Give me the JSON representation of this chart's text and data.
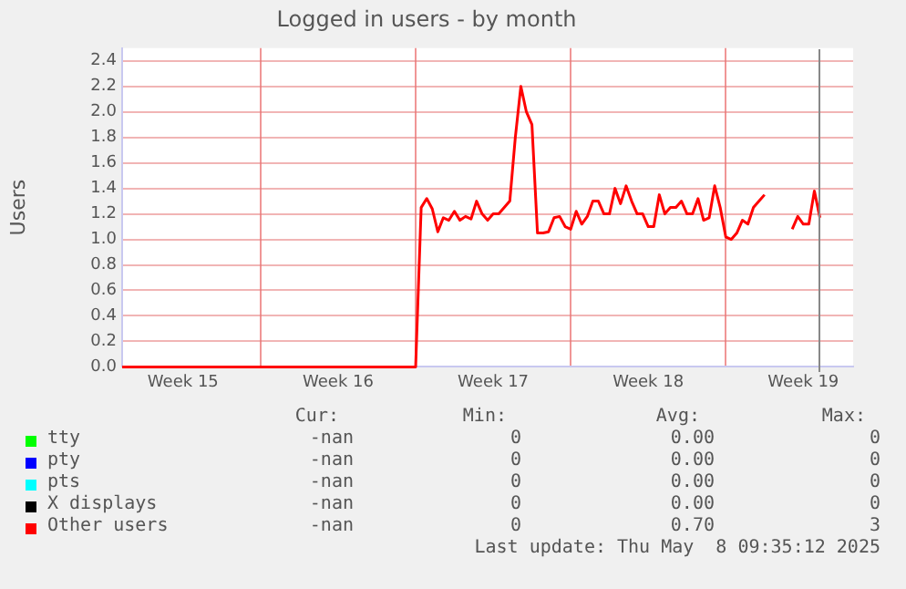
{
  "chart_data": {
    "type": "line",
    "title": "Logged in users - by month",
    "ylabel": "Users",
    "categories": [
      null,
      null,
      null,
      null,
      null,
      null,
      null,
      null,
      null,
      null,
      null,
      "Week 15",
      null,
      null,
      null,
      null,
      null,
      null,
      null,
      null,
      null,
      null,
      null,
      null,
      null,
      null,
      null,
      null,
      null,
      null,
      null,
      null,
      null,
      null,
      null,
      null,
      null,
      null,
      null,
      "Week 16",
      null,
      null,
      null,
      null,
      null,
      null,
      null,
      null,
      null,
      null,
      null,
      null,
      null,
      null,
      null,
      null,
      null,
      null,
      null,
      null,
      null,
      null,
      null,
      null,
      null,
      null,
      null,
      "Week 17",
      null,
      null,
      null,
      null,
      null,
      null,
      null,
      null,
      null,
      null,
      null,
      null,
      null,
      null,
      null,
      null,
      null,
      null,
      null,
      null,
      null,
      null,
      null,
      null,
      null,
      null,
      null,
      "Week 18",
      null,
      null,
      null,
      null,
      null,
      null,
      null,
      null,
      null,
      null,
      null,
      null,
      null,
      null,
      null,
      null,
      null,
      null,
      null,
      null,
      null,
      null,
      null,
      null,
      null,
      null,
      null,
      "Week 19",
      null,
      null,
      null,
      null,
      null,
      null,
      null,
      null,
      null
    ],
    "ylim": [
      0,
      2.5
    ],
    "yticks": [
      {
        "value": 0,
        "label": "0.0"
      },
      0.2,
      0.4,
      0.6,
      0.8,
      {
        "value": 1,
        "label": "1.0"
      },
      1.2,
      1.4,
      1.6,
      1.8,
      {
        "value": 2,
        "label": "2.0"
      },
      2.2,
      2.4
    ],
    "grid": true,
    "legend": "bottom",
    "line_style": "solid",
    "marker": "none",
    "series": [
      {
        "name": "tty",
        "color": "#00ff00",
        "values": [
          null,
          null,
          null,
          null,
          null,
          null,
          null,
          null,
          null,
          null,
          null,
          null,
          null,
          null,
          null,
          null,
          null,
          null,
          null,
          null,
          null,
          null,
          null,
          null,
          null,
          null,
          null,
          null,
          null,
          null,
          null,
          null,
          null,
          null,
          null,
          null,
          null,
          null,
          null,
          null,
          null,
          null,
          null,
          null,
          null,
          null,
          null,
          null,
          null,
          null,
          null,
          null,
          null,
          null,
          null,
          null,
          null,
          null,
          null,
          null,
          null,
          null,
          null,
          null,
          null,
          null,
          null,
          null,
          null,
          null,
          null,
          null,
          null,
          null,
          null,
          null,
          null,
          null,
          null,
          null,
          null,
          null,
          null,
          null,
          null,
          null,
          null,
          null,
          null,
          null,
          null,
          null,
          null,
          null,
          null,
          null,
          null,
          null,
          null,
          null,
          null,
          null,
          null,
          null,
          null,
          null,
          null,
          null,
          null,
          null,
          null,
          null,
          null,
          null,
          null,
          null,
          null,
          null,
          null,
          null,
          null,
          null,
          null,
          null,
          null,
          null,
          null,
          null,
          null,
          null,
          null,
          null,
          null
        ]
      },
      {
        "name": "pty",
        "color": "#0000ff",
        "values": [
          null,
          null,
          null,
          null,
          null,
          null,
          null,
          null,
          null,
          null,
          null,
          null,
          null,
          null,
          null,
          null,
          null,
          null,
          null,
          null,
          null,
          null,
          null,
          null,
          null,
          null,
          null,
          null,
          null,
          null,
          null,
          null,
          null,
          null,
          null,
          null,
          null,
          null,
          null,
          null,
          null,
          null,
          null,
          null,
          null,
          null,
          null,
          null,
          null,
          null,
          null,
          null,
          null,
          null,
          null,
          null,
          null,
          null,
          null,
          null,
          null,
          null,
          null,
          null,
          null,
          null,
          null,
          null,
          null,
          null,
          null,
          null,
          null,
          null,
          null,
          null,
          null,
          null,
          null,
          null,
          null,
          null,
          null,
          null,
          null,
          null,
          null,
          null,
          null,
          null,
          null,
          null,
          null,
          null,
          null,
          null,
          null,
          null,
          null,
          null,
          null,
          null,
          null,
          null,
          null,
          null,
          null,
          null,
          null,
          null,
          null,
          null,
          null,
          null,
          null,
          null,
          null,
          null,
          null,
          null,
          null,
          null,
          null,
          null,
          null,
          null,
          null,
          null,
          null,
          null,
          null,
          null,
          null
        ]
      },
      {
        "name": "pts",
        "color": "#00ffff",
        "values": [
          null,
          null,
          null,
          null,
          null,
          null,
          null,
          null,
          null,
          null,
          null,
          null,
          null,
          null,
          null,
          null,
          null,
          null,
          null,
          null,
          null,
          null,
          null,
          null,
          null,
          null,
          null,
          null,
          null,
          null,
          null,
          null,
          null,
          null,
          null,
          null,
          null,
          null,
          null,
          null,
          null,
          null,
          null,
          null,
          null,
          null,
          null,
          null,
          null,
          null,
          null,
          null,
          null,
          null,
          null,
          null,
          null,
          null,
          null,
          null,
          null,
          null,
          null,
          null,
          null,
          null,
          null,
          null,
          null,
          null,
          null,
          null,
          null,
          null,
          null,
          null,
          null,
          null,
          null,
          null,
          null,
          null,
          null,
          null,
          null,
          null,
          null,
          null,
          null,
          null,
          null,
          null,
          null,
          null,
          null,
          null,
          null,
          null,
          null,
          null,
          null,
          null,
          null,
          null,
          null,
          null,
          null,
          null,
          null,
          null,
          null,
          null,
          null,
          null,
          null,
          null,
          null,
          null,
          null,
          null,
          null,
          null,
          null,
          null,
          null,
          null,
          null,
          null,
          null,
          null,
          null,
          null,
          null
        ]
      },
      {
        "name": "X displays",
        "color": "#000000",
        "values": [
          null,
          null,
          null,
          null,
          null,
          null,
          null,
          null,
          null,
          null,
          null,
          null,
          null,
          null,
          null,
          null,
          null,
          null,
          null,
          null,
          null,
          null,
          null,
          null,
          null,
          null,
          null,
          null,
          null,
          null,
          null,
          null,
          null,
          null,
          null,
          null,
          null,
          null,
          null,
          null,
          null,
          null,
          null,
          null,
          null,
          null,
          null,
          null,
          null,
          null,
          null,
          null,
          null,
          null,
          null,
          null,
          null,
          null,
          null,
          null,
          null,
          null,
          null,
          null,
          null,
          null,
          null,
          null,
          null,
          null,
          null,
          null,
          null,
          null,
          null,
          null,
          null,
          null,
          null,
          null,
          null,
          null,
          null,
          null,
          null,
          null,
          null,
          null,
          null,
          null,
          null,
          null,
          null,
          null,
          null,
          null,
          null,
          null,
          null,
          null,
          null,
          null,
          null,
          null,
          null,
          null,
          null,
          null,
          null,
          null,
          null,
          null,
          null,
          null,
          null,
          null,
          null,
          null,
          null,
          null,
          null,
          null,
          null,
          null,
          null,
          null,
          null,
          null,
          null,
          null,
          null,
          null,
          null
        ]
      },
      {
        "name": "Other users",
        "color": "#ff0000",
        "values": [
          0,
          0,
          0,
          0,
          0,
          0,
          0,
          0,
          0,
          0,
          0,
          0,
          0,
          0,
          0,
          0,
          0,
          0,
          0,
          0,
          0,
          0,
          0,
          0,
          0,
          0,
          0,
          0,
          0,
          0,
          0,
          0,
          0,
          0,
          0,
          0,
          0,
          0,
          0,
          0,
          0,
          0,
          0,
          0,
          0,
          0,
          0,
          0,
          0,
          0,
          0,
          0,
          0,
          0,
          1.25,
          1.32,
          1.24,
          1.06,
          1.17,
          1.15,
          1.22,
          1.15,
          1.18,
          1.16,
          1.3,
          1.2,
          1.15,
          1.2,
          1.2,
          1.25,
          1.3,
          1.8,
          2.2,
          2.0,
          1.9,
          1.05,
          1.05,
          1.06,
          1.17,
          1.18,
          1.1,
          1.08,
          1.22,
          1.12,
          1.18,
          1.3,
          1.3,
          1.2,
          1.2,
          1.4,
          1.28,
          1.42,
          1.3,
          1.2,
          1.2,
          1.1,
          1.1,
          1.35,
          1.2,
          1.25,
          1.25,
          1.3,
          1.2,
          1.2,
          1.32,
          1.15,
          1.17,
          1.42,
          1.25,
          1.02,
          1.0,
          1.05,
          1.15,
          1.12,
          1.25,
          1.3,
          1.35,
          null,
          null,
          null,
          null,
          1.08,
          1.18,
          1.12,
          1.12,
          1.38,
          1.17,
          null,
          null,
          null,
          null,
          null,
          null
        ]
      }
    ],
    "annotations": [
      "Cur:",
      "Min:",
      "Avg:",
      "Max:",
      "-nan",
      "0",
      "0.00",
      "0",
      "-nan",
      "0",
      "0.00",
      "0",
      "-nan",
      "0",
      "0.00",
      "0",
      "-nan",
      "0",
      "0.00",
      "0",
      "-nan",
      "0",
      "0.70",
      "3",
      "Last update: Thu May  8 09:35:12 2025"
    ]
  }
}
